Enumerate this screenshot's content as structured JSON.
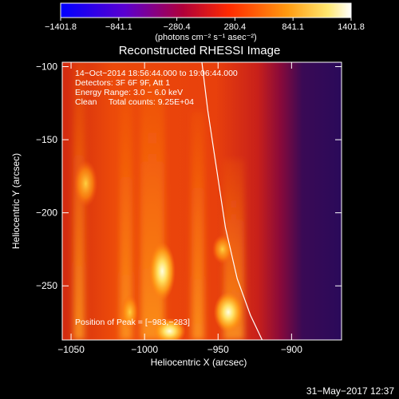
{
  "chart_data": {
    "type": "heatmap",
    "title": "Reconstructed RHESSI Image",
    "xlabel": "Heliocentric X (arcsec)",
    "ylabel": "Heliocentric Y (arcsec)",
    "xlim": [
      -1056,
      -866
    ],
    "ylim": [
      -287,
      -97
    ],
    "x_ticks": [
      {
        "value": -1050,
        "label": "−1050"
      },
      {
        "value": -1000,
        "label": "−1000"
      },
      {
        "value": -950,
        "label": "−950"
      },
      {
        "value": -900,
        "label": "−900"
      }
    ],
    "y_ticks": [
      {
        "value": -100,
        "label": "−100"
      },
      {
        "value": -150,
        "label": "−150"
      },
      {
        "value": -200,
        "label": "−200"
      },
      {
        "value": -250,
        "label": "−250"
      }
    ],
    "colorbar": {
      "range": [
        -1401.8,
        1401.8
      ],
      "tick_values": [
        -1401.8,
        -841.1,
        -280.4,
        280.4,
        841.1,
        1401.8
      ],
      "tick_labels": [
        "−1401.8",
        "−841.1",
        "−280.4",
        "280.4",
        "841.1",
        "1401.8"
      ],
      "unit": "(photons cm⁻² s⁻¹ asec⁻²)",
      "colormap": [
        "#0000ff",
        "#6600cc",
        "#cc0033",
        "#ff6600",
        "#ffcc33",
        "#ffffff"
      ]
    },
    "annotations": [
      "14−Oct−2014 18:56:44.000 to 19:06:44.000",
      "Detectors: 3F 6F 9F, Att 1",
      "Energy Range: 3.0 − 6.0 keV",
      "Clean     Total counts: 9.25E+04"
    ],
    "peak_label": "Position of Peak = [−983,−283]",
    "peak": {
      "x": -983,
      "y": -283
    },
    "limb_points": [
      {
        "x": -961,
        "y": -97
      },
      {
        "x": -957,
        "y": -130
      },
      {
        "x": -951,
        "y": -170
      },
      {
        "x": -945,
        "y": -210
      },
      {
        "x": -937,
        "y": -245
      },
      {
        "x": -928,
        "y": -270
      },
      {
        "x": -920,
        "y": -287
      }
    ],
    "hot_spots": [
      {
        "x": -983,
        "y": -281,
        "value": 1401.8,
        "rx": 11,
        "ry": 9
      },
      {
        "x": -988,
        "y": -240,
        "value": 1050,
        "rx": 9,
        "ry": 20
      },
      {
        "x": -943,
        "y": -268,
        "value": 1100,
        "rx": 10,
        "ry": 14
      },
      {
        "x": -947,
        "y": -225,
        "value": 900,
        "rx": 7,
        "ry": 10
      },
      {
        "x": -1010,
        "y": -268,
        "value": 820,
        "rx": 6,
        "ry": 12
      },
      {
        "x": -1040,
        "y": -180,
        "value": 680,
        "rx": 8,
        "ry": 16
      }
    ],
    "dark_region": {
      "x_from": -905,
      "x_to": -866,
      "value": -400
    }
  },
  "footer_timestamp": "31−May−2017 12:37"
}
